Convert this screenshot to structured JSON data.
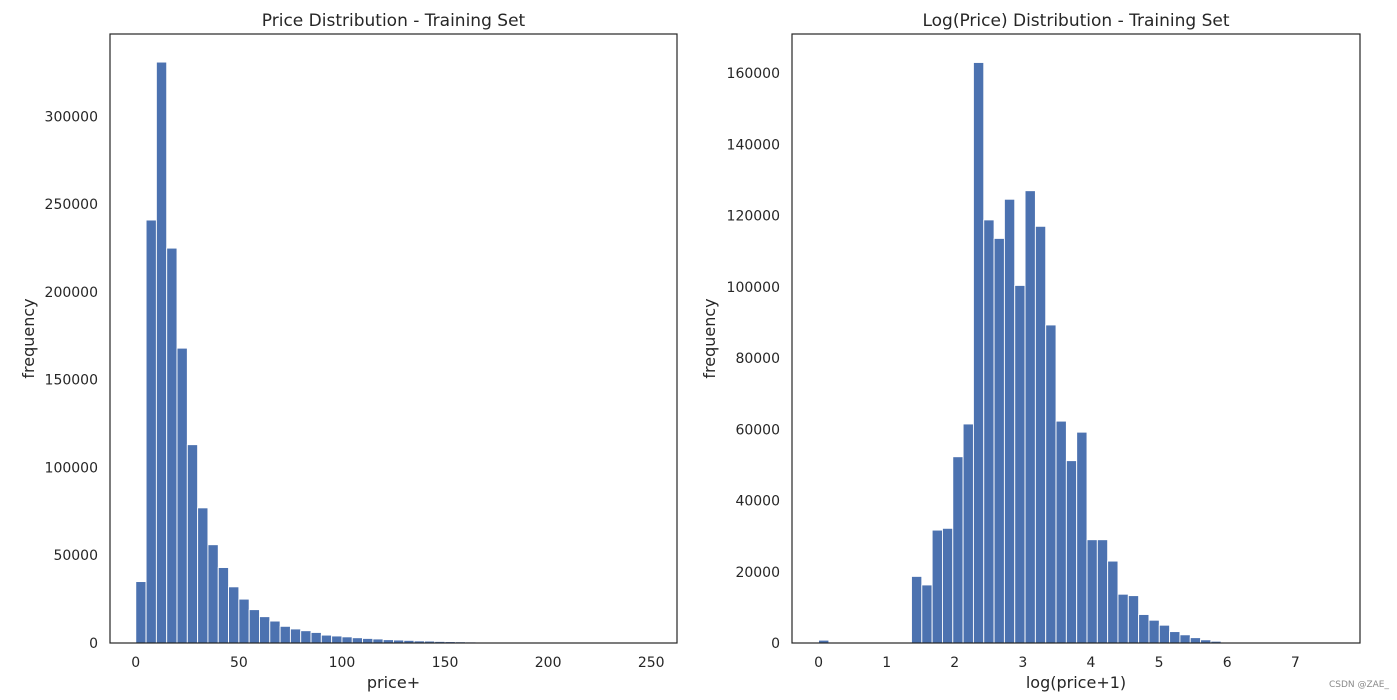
{
  "chart_data": [
    {
      "type": "bar",
      "title": "Price Distribution - Training Set",
      "xlabel": "price+",
      "ylabel": "frequency",
      "xlim": [
        -12.5,
        262.5
      ],
      "ylim": [
        0,
        347000
      ],
      "xticks": [
        0,
        50,
        100,
        150,
        200,
        250
      ],
      "yticks": [
        0,
        50000,
        100000,
        150000,
        200000,
        250000,
        300000
      ],
      "bin_start": 0,
      "bin_width": 5,
      "values": [
        35000,
        241000,
        331000,
        225000,
        168000,
        113000,
        77000,
        56000,
        43000,
        32000,
        25000,
        19000,
        15000,
        12500,
        9500,
        8000,
        7000,
        6000,
        4500,
        4000,
        3500,
        3000,
        2600,
        2300,
        1900,
        1700,
        1500,
        1200,
        1100,
        900,
        800,
        700,
        600,
        500,
        400,
        350,
        300,
        250,
        200,
        180,
        160,
        140,
        120,
        100,
        90,
        80,
        70,
        60,
        50,
        40
      ],
      "color": "#4c72b0",
      "grid": false
    },
    {
      "type": "bar",
      "title": "Log(Price) Distribution - Training Set",
      "xlabel": "log(price+1)",
      "ylabel": "frequency",
      "xlim": [
        -0.39,
        7.95
      ],
      "ylim": [
        0,
        171000
      ],
      "xticks": [
        0,
        1,
        2,
        3,
        4,
        5,
        6,
        7
      ],
      "yticks": [
        0,
        20000,
        40000,
        60000,
        80000,
        100000,
        120000,
        140000,
        160000
      ],
      "bin_start": 0,
      "bin_width": 0.1516,
      "values": [
        800,
        0,
        0,
        0,
        0,
        0,
        0,
        0,
        0,
        18700,
        16300,
        31700,
        32200,
        52300,
        61500,
        163000,
        118800,
        113600,
        124600,
        100400,
        127000,
        117000,
        89300,
        62300,
        51200,
        59200,
        29000,
        29000,
        23000,
        13700,
        13300,
        8000,
        6400,
        5000,
        3200,
        2300,
        1500,
        900,
        500,
        200,
        100,
        80,
        50,
        30,
        20,
        15,
        10,
        5,
        3,
        2
      ],
      "color": "#4c72b0",
      "grid": false
    }
  ],
  "watermark": "CSDN @ZAE_"
}
